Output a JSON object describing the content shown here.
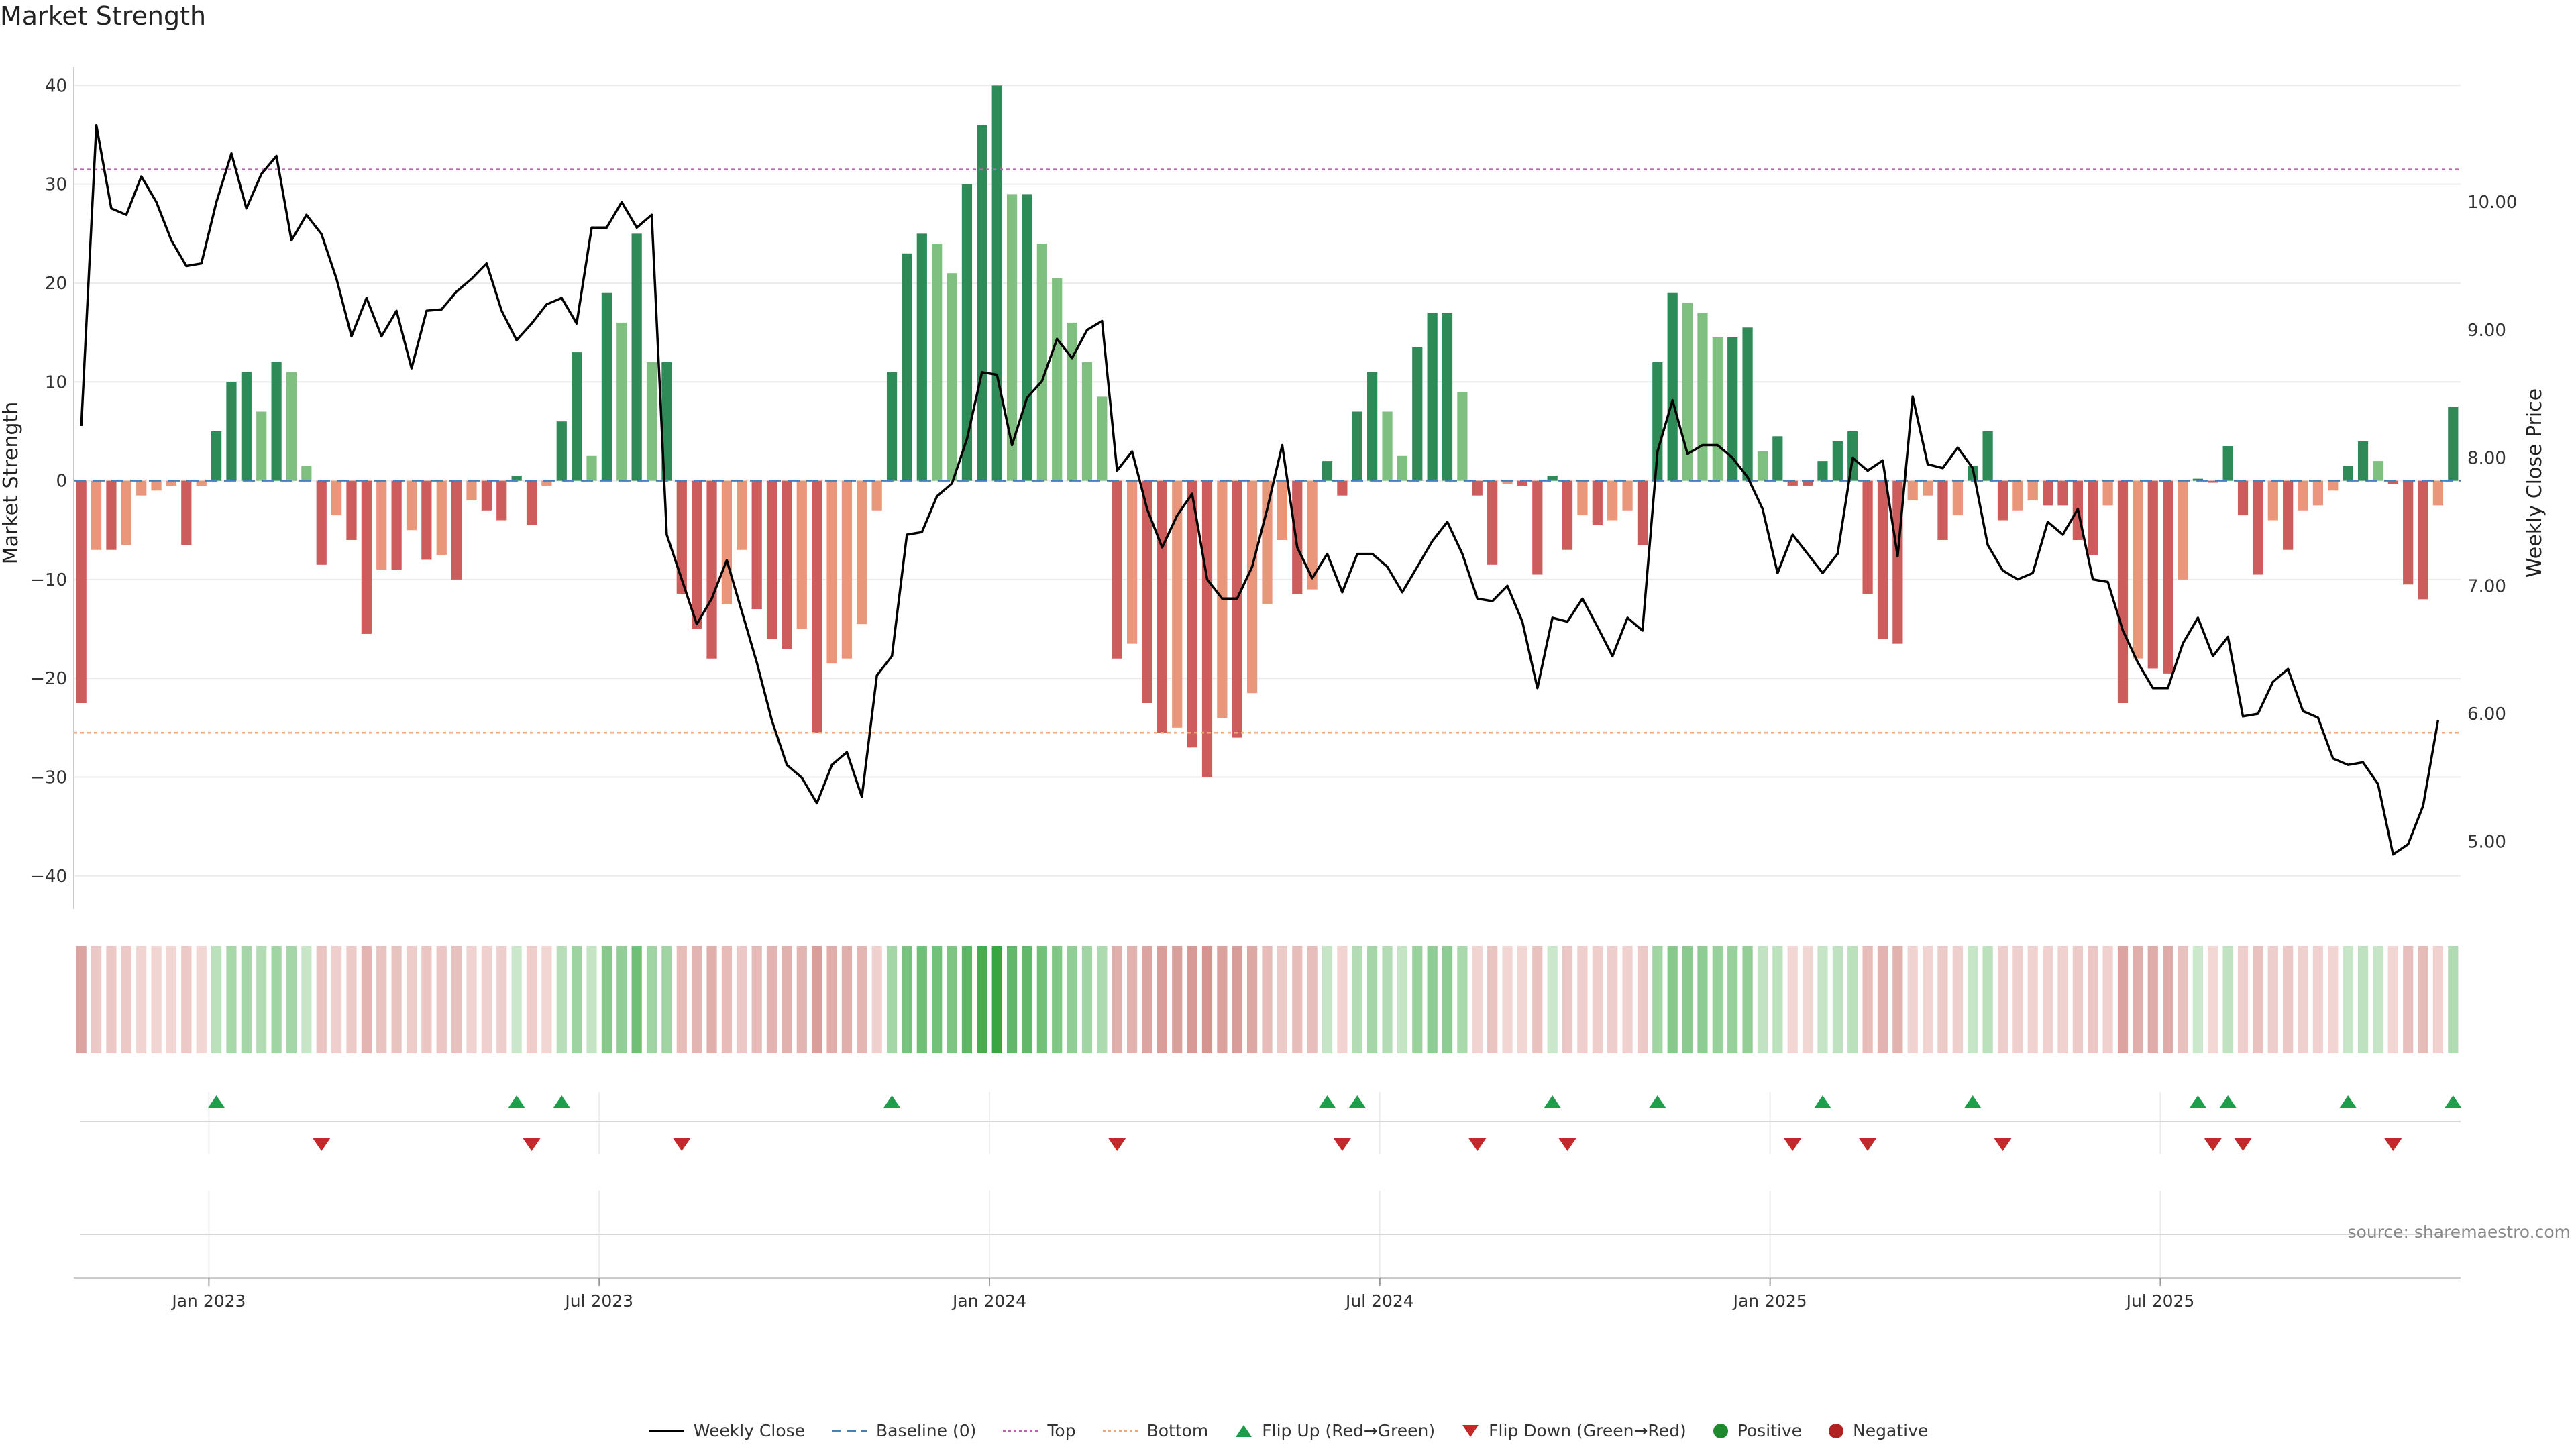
{
  "chart_data": {
    "type": "bar",
    "title": "Market Strength",
    "ylabel_left": "Market Strength",
    "ylabel_right": "Weekly Close Price",
    "ylim": [
      -43,
      40.5
    ],
    "ylim_right": [
      4.5,
      10.95
    ],
    "yticks_left": [
      "40",
      "30",
      "20",
      "10",
      "0",
      "−10",
      "−20",
      "−30",
      "−40"
    ],
    "yticks_right": [
      "10.00",
      "9.00",
      "8.00",
      "7.00",
      "6.00",
      "5.00"
    ],
    "xticks": [
      "Jan 2023",
      "Jul 2023",
      "Jan 2024",
      "Jul 2024",
      "Jan 2025",
      "Jul 2025"
    ],
    "xtick_index": [
      9,
      35,
      61,
      87,
      113,
      139
    ],
    "top_level": 31.5,
    "bottom_level": -25.5,
    "strength": [
      -22.5,
      -7,
      -7,
      -6.5,
      -1.5,
      -1,
      -0.5,
      -6.5,
      -0.5,
      5,
      10,
      11,
      7,
      12,
      11,
      1.5,
      -8.5,
      -3.5,
      -6,
      -15.5,
      -9,
      -9,
      -5,
      -8,
      -7.5,
      -10,
      -2,
      -3,
      -4,
      0.5,
      -4.5,
      -0.5,
      6,
      13,
      2.5,
      19,
      16,
      25,
      12,
      12,
      -11.5,
      -15,
      -18,
      -12.5,
      -7,
      -13,
      -16,
      -17,
      -15,
      -25.5,
      -18.5,
      -18,
      -14.5,
      -3,
      11,
      23,
      25,
      24,
      21,
      30,
      36,
      40,
      29,
      29,
      24,
      20.5,
      16,
      12,
      8.5,
      -18,
      -16.5,
      -22.5,
      -25.5,
      -25,
      -27,
      -30,
      -24,
      -26,
      -21.5,
      -12.5,
      -6,
      -11.5,
      -11,
      2,
      -1.5,
      7,
      11,
      7,
      2.5,
      13.5,
      17,
      17,
      9,
      -1.5,
      -8.5,
      -0.3,
      -0.5,
      -9.5,
      0.5,
      -7,
      -3.5,
      -4.5,
      -4,
      -3,
      -6.5,
      12,
      19,
      18,
      17,
      14.5,
      14.5,
      15.5,
      3,
      4.5,
      -0.5,
      -0.5,
      2,
      4,
      5,
      -11.5,
      -16,
      -16.5,
      -2,
      -1.5,
      -6,
      -3.5,
      1.5,
      5,
      -4,
      -3,
      -2,
      -2.5,
      -2.5,
      -6,
      -7.5,
      -2.5,
      -22.5,
      -18,
      -19,
      -19.5,
      -10,
      0.2,
      -0.2,
      3.5,
      -3.5,
      -9.5,
      -4,
      -7,
      -3,
      -2.5,
      -1,
      1.5,
      4,
      2,
      -0.3,
      -10.5,
      -12,
      -2.5,
      7.5
    ],
    "close": [
      8.25,
      10.6,
      9.95,
      9.9,
      10.2,
      10.0,
      9.7,
      9.5,
      9.52,
      10.0,
      10.38,
      9.95,
      10.22,
      10.36,
      9.7,
      9.9,
      9.75,
      9.4,
      8.95,
      9.25,
      8.95,
      9.15,
      8.7,
      9.15,
      9.16,
      9.3,
      9.4,
      9.52,
      9.15,
      8.92,
      9.05,
      9.2,
      9.25,
      9.05,
      9.8,
      9.8,
      10.0,
      9.8,
      9.9,
      7.4,
      7.05,
      6.7,
      6.9,
      7.2,
      6.8,
      6.4,
      5.95,
      5.6,
      5.5,
      5.3,
      5.6,
      5.7,
      5.35,
      6.3,
      6.45,
      7.4,
      7.42,
      7.7,
      7.8,
      8.15,
      8.67,
      8.65,
      8.1,
      8.47,
      8.6,
      8.93,
      8.78,
      9.0,
      9.07,
      7.9,
      8.05,
      7.6,
      7.3,
      7.55,
      7.72,
      7.05,
      6.9,
      6.9,
      7.15,
      7.6,
      8.1,
      7.3,
      7.06,
      7.25,
      6.95,
      7.25,
      7.25,
      7.15,
      6.95,
      7.15,
      7.35,
      7.5,
      7.25,
      6.9,
      6.88,
      7.0,
      6.72,
      6.2,
      6.75,
      6.72,
      6.9,
      6.68,
      6.45,
      6.75,
      6.65,
      8.05,
      8.45,
      8.03,
      8.1,
      8.1,
      8.0,
      7.85,
      7.6,
      7.1,
      7.4,
      7.25,
      7.1,
      7.25,
      8.0,
      7.9,
      7.98,
      7.23,
      8.48,
      7.95,
      7.92,
      8.08,
      7.92,
      7.32,
      7.12,
      7.05,
      7.1,
      7.5,
      7.4,
      7.6,
      7.05,
      7.03,
      6.65,
      6.4,
      6.2,
      6.2,
      6.55,
      6.75,
      6.45,
      6.6,
      5.98,
      6.0,
      6.25,
      6.35,
      6.02,
      5.97,
      5.65,
      5.6,
      5.62,
      5.45,
      4.9,
      4.98,
      5.28,
      5.95
    ]
  },
  "legend": [
    {
      "label": "Weekly Close",
      "icon": "line-icon"
    },
    {
      "label": "Baseline (0)",
      "icon": "dashed-line-icon"
    },
    {
      "label": "Top",
      "icon": "dotted-line-icon"
    },
    {
      "label": "Bottom",
      "icon": "dotted-line-icon"
    },
    {
      "label": "Flip Up (Red→Green)",
      "icon": "triangle-up-icon"
    },
    {
      "label": "Flip Down (Green→Red)",
      "icon": "triangle-down-icon"
    },
    {
      "label": "Positive",
      "icon": "dot-icon"
    },
    {
      "label": "Negative",
      "icon": "dot-icon"
    }
  ],
  "colors": {
    "pos_strong": "#2e8b57",
    "pos_weak": "#7fbf7f",
    "neg_strong": "#cd5c5c",
    "neg_weak": "#e9967a",
    "close_line": "#000000",
    "baseline": "#4682b4",
    "top_line": "#c060b0",
    "bottom_line": "#f0a878",
    "flip_up": "#1e9e4a",
    "flip_down": "#c62828",
    "positive": "#1e8a2e",
    "negative": "#b22222"
  },
  "source": "source: sharemaestro.com"
}
